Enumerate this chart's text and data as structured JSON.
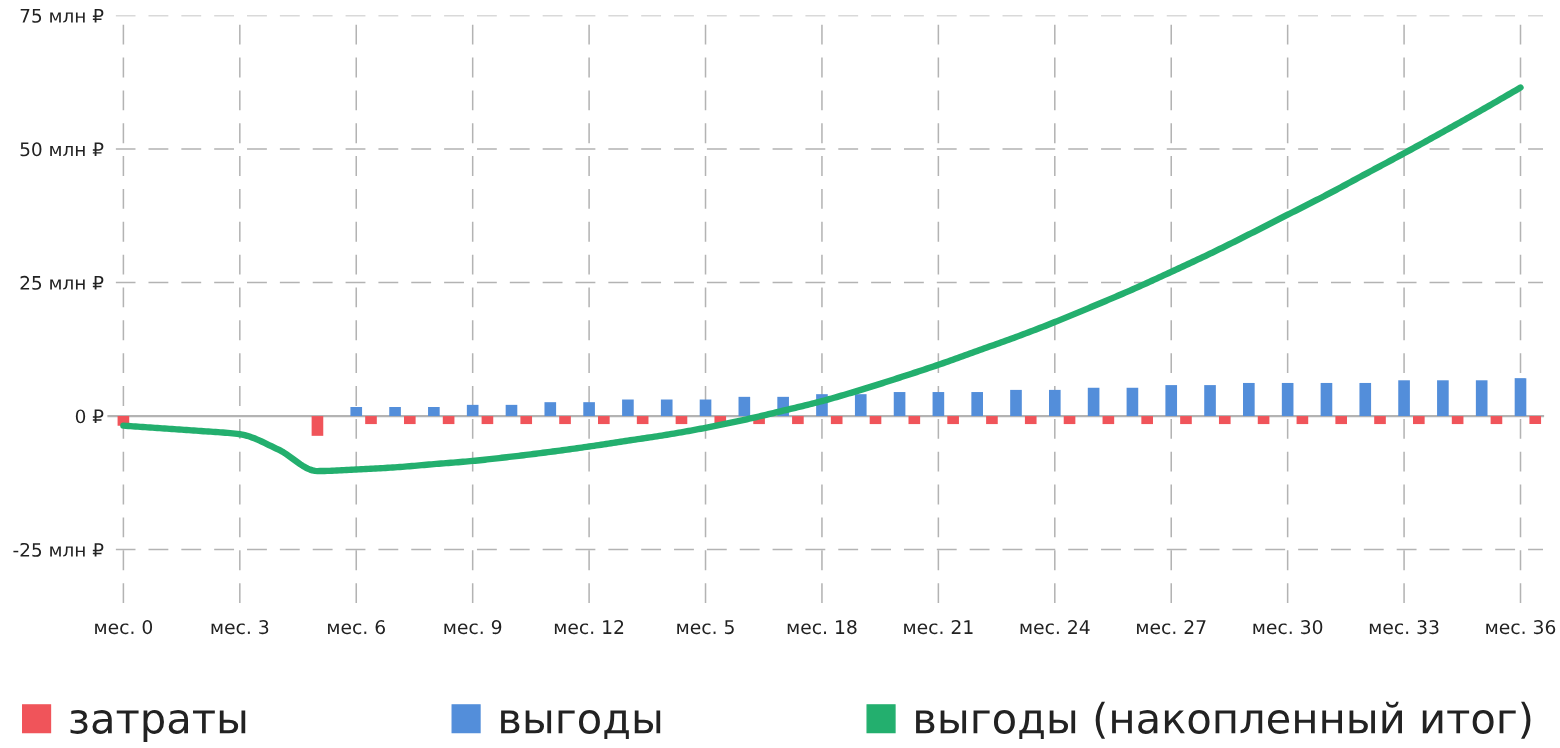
{
  "chart_data": {
    "type": "bar",
    "categories": [
      "мес. 0",
      null,
      null,
      "мес. 3",
      null,
      null,
      "мес. 6",
      null,
      null,
      "мес. 9",
      null,
      null,
      "мес. 12",
      null,
      null,
      "мес. 5",
      null,
      null,
      "мес. 18",
      null,
      null,
      "мес. 21",
      null,
      null,
      "мес. 24",
      null,
      null,
      "мес. 27",
      null,
      null,
      "мес. 30",
      null,
      null,
      "мес. 33",
      null,
      null,
      "мес. 36"
    ],
    "series": [
      {
        "name": "затраты",
        "color": "#f0545a",
        "values": [
          -1.8,
          null,
          null,
          null,
          null,
          -3.7,
          -1.5,
          -1.5,
          -1.5,
          -1.5,
          -1.5,
          -1.5,
          -1.5,
          -1.5,
          -1.5,
          -1.5,
          -1.5,
          -1.5,
          -1.5,
          -1.5,
          -1.5,
          -1.5,
          -1.5,
          -1.5,
          -1.5,
          -1.5,
          -1.5,
          -1.5,
          -1.5,
          -1.5,
          -1.5,
          -1.5,
          -1.5,
          -1.5,
          -1.5,
          -1.5,
          -1.5
        ]
      },
      {
        "name": "выгоды",
        "color": "#538eda",
        "values": [
          null,
          null,
          null,
          null,
          null,
          null,
          1.7,
          1.7,
          1.7,
          2.1,
          2.1,
          2.6,
          2.6,
          3.1,
          3.1,
          3.1,
          3.6,
          3.6,
          4.1,
          4.1,
          4.5,
          4.5,
          4.5,
          4.9,
          4.9,
          5.3,
          5.3,
          5.8,
          5.8,
          6.2,
          6.2,
          6.2,
          6.2,
          6.7,
          6.7,
          6.7,
          7.1
        ]
      },
      {
        "name": "выгоды (накопленный итог)",
        "type": "line",
        "color": "#23af6e",
        "values": [
          -1.8,
          -2.3,
          -2.8,
          -3.4,
          -6.3,
          -10.3,
          -10.0,
          -9.6,
          -9.0,
          -8.4,
          -7.6,
          -6.7,
          -5.7,
          -4.6,
          -3.5,
          -2.2,
          -0.7,
          1.0,
          2.8,
          4.9,
          7.2,
          9.6,
          12.2,
          14.8,
          17.6,
          20.6,
          23.7,
          27.0,
          30.4,
          34.0,
          37.7,
          41.4,
          45.3,
          49.2,
          53.2,
          57.3,
          61.5
        ]
      }
    ],
    "ylim": [
      -35,
      75
    ],
    "yticks": [
      {
        "value": -25,
        "label": "-25 млн ₽"
      },
      {
        "value": 0,
        "label": "0 ₽"
      },
      {
        "value": 25,
        "label": "25 млн ₽"
      },
      {
        "value": 50,
        "label": "50 млн ₽"
      },
      {
        "value": 75,
        "label": "75 млн ₽"
      }
    ],
    "ref_lines": [
      {
        "axis": "y",
        "value": 0,
        "color": "#b3b3b3"
      }
    ],
    "grid": true,
    "legend": "bottom"
  }
}
